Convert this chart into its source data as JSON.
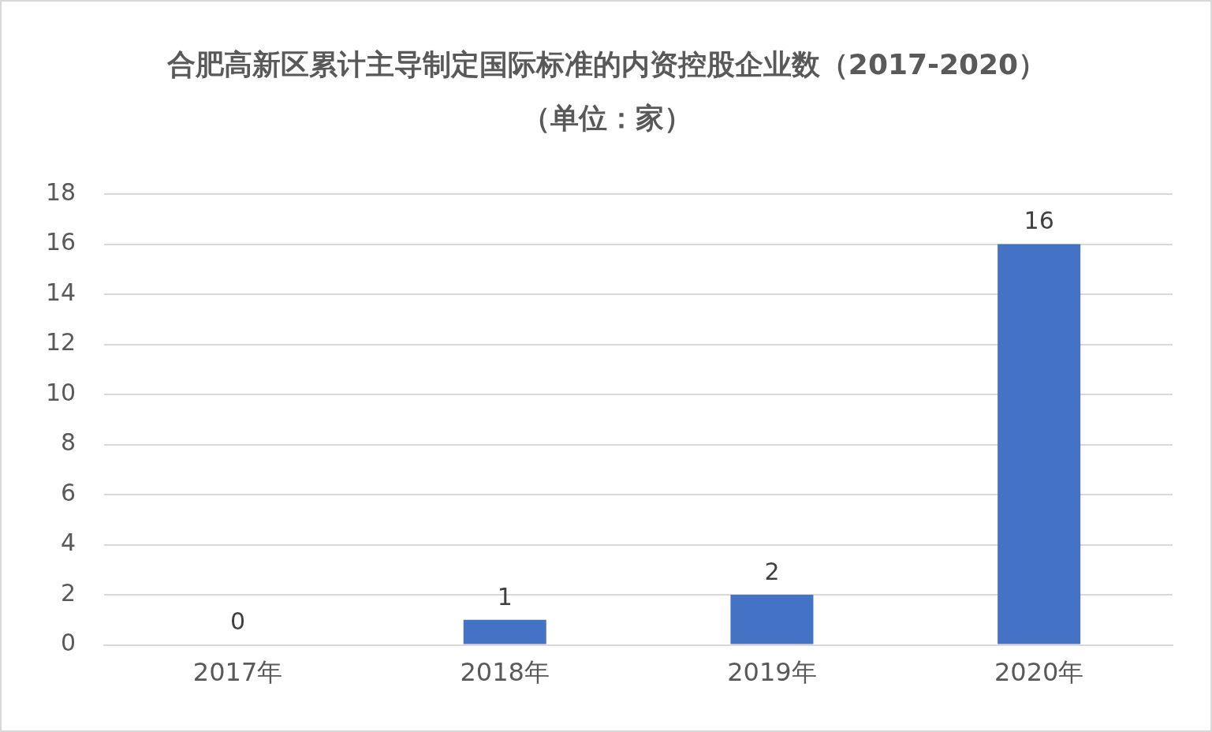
{
  "chart_data": {
    "type": "bar",
    "title": "合肥高新区累计主导制定国际标准的内资控股企业数（2017-2020）（单位：家）",
    "categories": [
      "2017年",
      "2018年",
      "2019年",
      "2020年"
    ],
    "values": [
      0,
      1,
      2,
      16
    ],
    "color": "#4472c4",
    "ylim": [
      0,
      18
    ],
    "yticks": [
      0,
      2,
      4,
      6,
      8,
      10,
      12,
      14,
      16,
      18
    ],
    "grid": "y",
    "data_labels": true
  }
}
